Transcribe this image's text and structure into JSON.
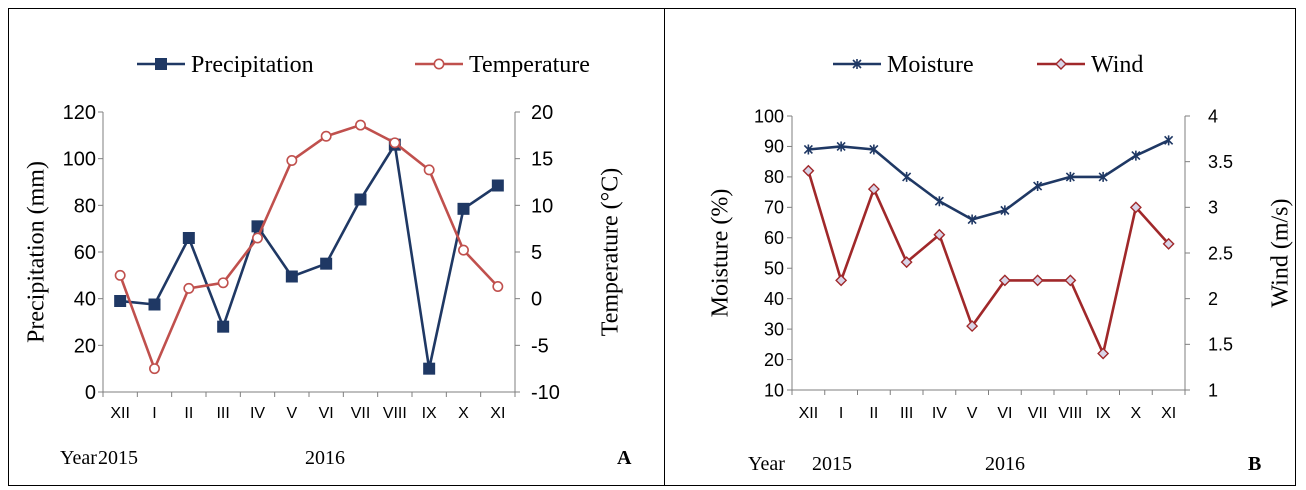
{
  "chart_data": [
    {
      "type": "line",
      "panel_label": "A",
      "categories": [
        "XII",
        "I",
        "II",
        "III",
        "IV",
        "V",
        "VI",
        "VII",
        "VIII",
        "IX",
        "X",
        "XI"
      ],
      "year_label": "Year",
      "year_marks": [
        "2015",
        "2016"
      ],
      "ylabel": "Precipitation (mm)",
      "ylabel2": "Temperature (°C)",
      "ylim": [
        0,
        120
      ],
      "yticks": [
        0,
        20,
        40,
        60,
        80,
        100,
        120
      ],
      "ylim2": [
        -10,
        20
      ],
      "yticks2": [
        -10,
        -5,
        0,
        5,
        10,
        15,
        20
      ],
      "legend_position": "top",
      "grid": false,
      "series": [
        {
          "name": "Precipitation",
          "axis": "left",
          "marker": "square",
          "color": "#1F3864",
          "values": [
            39,
            37.5,
            66,
            28,
            71,
            49.5,
            55,
            82.5,
            106,
            10,
            78.5,
            88.5
          ]
        },
        {
          "name": "Temperature",
          "axis": "right",
          "marker": "circle",
          "color": "#C0504D",
          "values": [
            2.5,
            -7.5,
            1.1,
            1.7,
            6.5,
            14.8,
            17.4,
            18.6,
            16.7,
            13.8,
            5.2,
            1.3
          ]
        }
      ]
    },
    {
      "type": "line",
      "panel_label": "B",
      "categories": [
        "XII",
        "I",
        "II",
        "III",
        "IV",
        "V",
        "VI",
        "VII",
        "VIII",
        "IX",
        "X",
        "XI"
      ],
      "year_label": "Year",
      "year_marks": [
        "2015",
        "2016"
      ],
      "ylabel": "Moisture (%)",
      "ylabel2": "Wind (m/s)",
      "ylim": [
        10,
        100
      ],
      "yticks": [
        10,
        20,
        30,
        40,
        50,
        60,
        70,
        80,
        90,
        100
      ],
      "ylim2": [
        1,
        4
      ],
      "yticks2": [
        1,
        1.5,
        2,
        2.5,
        3,
        3.5,
        4
      ],
      "legend_position": "top",
      "grid": false,
      "series": [
        {
          "name": "Moisture",
          "axis": "left",
          "marker": "star",
          "color": "#1F3864",
          "values": [
            89,
            90,
            89,
            80,
            72,
            66,
            69,
            77,
            80,
            80,
            87,
            92
          ]
        },
        {
          "name": "Wind",
          "axis": "right",
          "marker": "diamond",
          "color": "#A0282A",
          "values": [
            3.4,
            2.2,
            3.2,
            2.4,
            2.7,
            1.7,
            2.2,
            2.2,
            2.2,
            1.4,
            3.0,
            2.6
          ]
        }
      ]
    }
  ]
}
